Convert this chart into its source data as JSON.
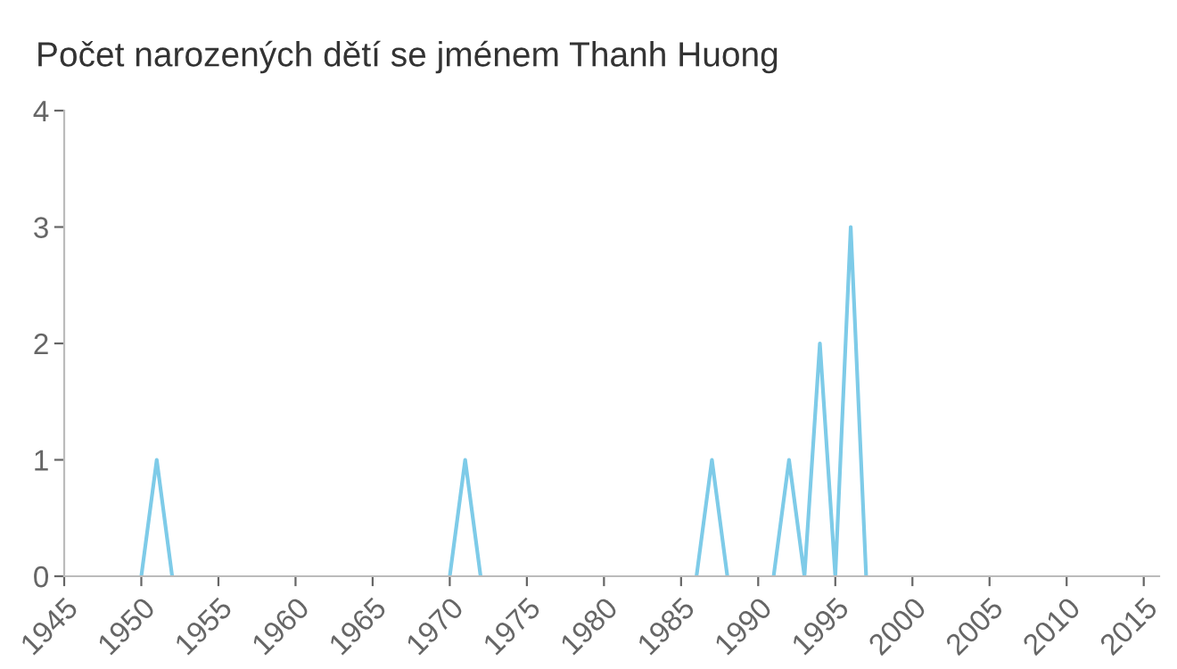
{
  "chart_data": {
    "type": "line",
    "title": "Počet narozených dětí se jménem Thanh Huong",
    "x": [
      1950,
      1951,
      1952,
      1953,
      1970,
      1971,
      1972,
      1973,
      1986,
      1987,
      1988,
      1989,
      1991,
      1992,
      1993,
      1994,
      1995,
      1996,
      1997
    ],
    "series": [
      {
        "color": "#7ecbe8",
        "values": [
          0,
          1,
          0,
          null,
          0,
          1,
          0,
          null,
          0,
          1,
          0,
          null,
          0,
          1,
          0,
          2,
          0,
          3,
          0
        ]
      }
    ],
    "xlim": [
      1945,
      2016
    ],
    "xticks": [
      1945,
      1950,
      1955,
      1960,
      1965,
      1970,
      1975,
      1980,
      1985,
      1990,
      1995,
      2000,
      2005,
      2010,
      2015
    ],
    "ylim": [
      0,
      4
    ],
    "yticks": [
      0,
      1,
      2,
      3,
      4
    ],
    "grid": false,
    "legend": false,
    "marker": "none",
    "line_style": "solid"
  }
}
